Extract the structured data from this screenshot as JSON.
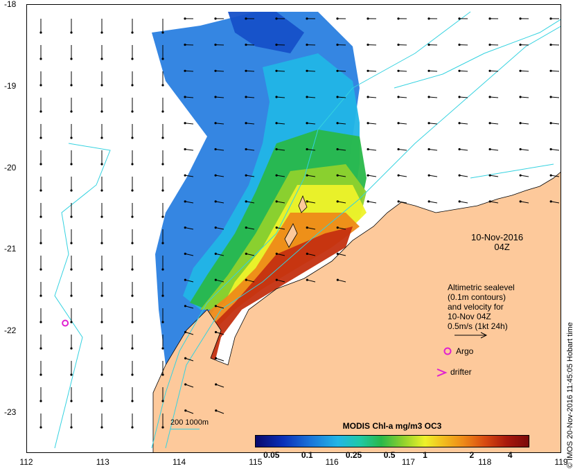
{
  "map": {
    "lon_range": [
      112,
      119
    ],
    "lat_range": [
      -23.5,
      -18
    ],
    "x_ticks": [
      "112",
      "113",
      "114",
      "115",
      "116",
      "117",
      "118",
      "119"
    ],
    "y_ticks": [
      "-18",
      "-19",
      "-20",
      "-21",
      "-22",
      "-23"
    ],
    "land_color": "#fdc99b",
    "contour_color": "#34d2e0"
  },
  "date_label": {
    "line1": "10-Nov-2016",
    "line2": "04Z"
  },
  "legend": {
    "line1": "Altimetric sealevel",
    "line2": "(0.1m contours)",
    "line3": "and velocity for",
    "line4": "10-Nov 04Z",
    "line5": "0.5m/s (1kt 24h)",
    "argo_label": "Argo",
    "drifter_label": "drifter",
    "argo_color": "#e020d0",
    "drifter_color": "#e020d0"
  },
  "depth_key": "200  1000m",
  "colorbar": {
    "title": "MODIS Chl-a mg/m3 OC3",
    "ticks": [
      "0.05",
      "0.1",
      "0.25",
      "0.5",
      "1",
      "2",
      "4"
    ],
    "tick_fractions": [
      0.06,
      0.19,
      0.36,
      0.49,
      0.62,
      0.79,
      0.93
    ]
  },
  "credit": "© IMOS 20-Nov-2016 11:45:05 Hobart time",
  "argo_float": {
    "lon": 112.5,
    "lat": -21.9
  }
}
